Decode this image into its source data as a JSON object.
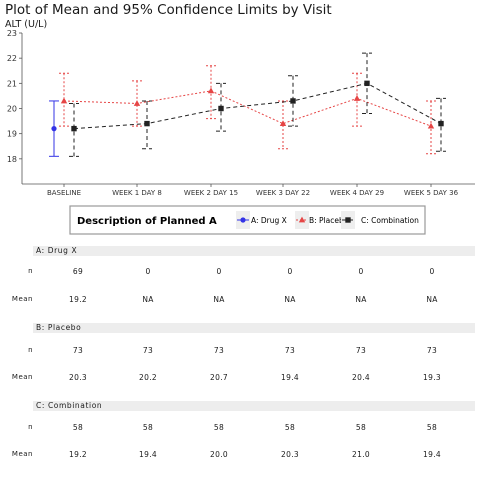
{
  "page": {
    "title": "Plot of Mean and 95% Confidence Limits by Visit",
    "subtitle": "ALT (U/L)"
  },
  "chart_data": {
    "type": "line",
    "title": "Plot of Mean and 95% Confidence Limits by Visit",
    "ylabel": "ALT (U/L)",
    "xlabel": "",
    "ylim": [
      17,
      23
    ],
    "yticks": [
      18,
      19,
      20,
      21,
      22,
      23
    ],
    "categories": [
      "BASELINE",
      "WEEK 1 DAY 8",
      "WEEK 2 DAY 15",
      "WEEK 3 DAY 22",
      "WEEK 4 DAY 29",
      "WEEK 5 DAY 36"
    ],
    "grid": false,
    "legend": {
      "title": "Description of Planned A",
      "position": "below-plot",
      "items": [
        "A: Drug X",
        "B: Placebo",
        "C: Combination"
      ]
    },
    "series": [
      {
        "name": "A: Drug X",
        "color": "#3333e6",
        "marker": "circle",
        "line_style": "solid",
        "mean": [
          19.2,
          null,
          null,
          null,
          null,
          null
        ],
        "lower": [
          18.1,
          null,
          null,
          null,
          null,
          null
        ],
        "upper": [
          20.3,
          null,
          null,
          null,
          null,
          null
        ]
      },
      {
        "name": "B: Placebo",
        "color": "#e64545",
        "marker": "triangle",
        "line_style": "dotted",
        "mean": [
          20.3,
          20.2,
          20.7,
          19.4,
          20.4,
          19.3
        ],
        "lower": [
          19.3,
          19.3,
          19.6,
          18.4,
          19.3,
          18.2
        ],
        "upper": [
          21.4,
          21.1,
          21.7,
          20.3,
          21.4,
          20.3
        ]
      },
      {
        "name": "C: Combination",
        "color": "#222222",
        "marker": "square",
        "line_style": "dashed",
        "mean": [
          19.2,
          19.4,
          20.0,
          20.3,
          21.0,
          19.4
        ],
        "lower": [
          18.1,
          18.4,
          19.1,
          19.3,
          19.8,
          18.3
        ],
        "upper": [
          20.2,
          20.3,
          21.0,
          21.3,
          22.2,
          20.4
        ]
      }
    ]
  },
  "summary_table": {
    "row_labels": {
      "n": "n",
      "mean": "Mean"
    },
    "groups": [
      {
        "name": "A: Drug X",
        "n": [
          "69",
          "0",
          "0",
          "0",
          "0",
          "0"
        ],
        "mean": [
          "19.2",
          "NA",
          "NA",
          "NA",
          "NA",
          "NA"
        ]
      },
      {
        "name": "B: Placebo",
        "n": [
          "73",
          "73",
          "73",
          "73",
          "73",
          "73"
        ],
        "mean": [
          "20.3",
          "20.2",
          "20.7",
          "19.4",
          "20.4",
          "19.3"
        ]
      },
      {
        "name": "C: Combination",
        "n": [
          "58",
          "58",
          "58",
          "58",
          "58",
          "58"
        ],
        "mean": [
          "19.2",
          "19.4",
          "20.0",
          "20.3",
          "21.0",
          "19.4"
        ]
      }
    ]
  }
}
